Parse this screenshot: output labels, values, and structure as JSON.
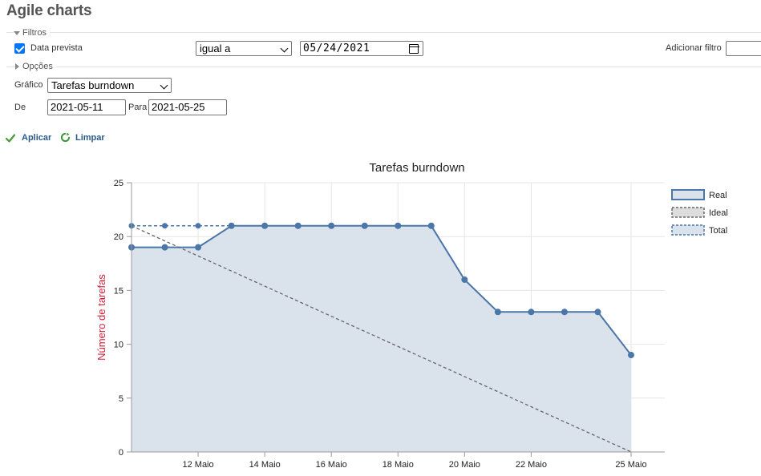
{
  "page": {
    "title": "Agile charts"
  },
  "filters": {
    "legend": "Filtros",
    "data_prevista": {
      "label": "Data prevista",
      "checked": true
    },
    "operator": "igual a",
    "date_value": "05/24/2021",
    "add_filter_label": "Adicionar filtro"
  },
  "options": {
    "legend": "Opções"
  },
  "grafico": {
    "label": "Gráfico",
    "selected": "Tarefas burndown"
  },
  "range": {
    "de_label": "De",
    "de_value": "2021-05-11",
    "para_label": "Para",
    "para_value": "2021-05-25"
  },
  "actions": {
    "apply": "Aplicar",
    "clear": "Limpar"
  },
  "chart_data": {
    "type": "line",
    "title": "Tarefas burndown",
    "ylabel": "Número de tarefas",
    "xlabel": "",
    "ylim": [
      0,
      25
    ],
    "yticks": [
      "0",
      "5",
      "10",
      "15",
      "20",
      "25"
    ],
    "x": [
      "2021-05-10",
      "2021-05-11",
      "2021-05-12",
      "2021-05-13",
      "2021-05-14",
      "2021-05-15",
      "2021-05-16",
      "2021-05-17",
      "2021-05-18",
      "2021-05-19",
      "2021-05-20",
      "2021-05-21",
      "2021-05-22",
      "2021-05-23",
      "2021-05-24",
      "2021-05-25"
    ],
    "xtick_labels": [
      {
        "date": "2021-05-12",
        "label": "12 Maio"
      },
      {
        "date": "2021-05-14",
        "label": "14 Maio"
      },
      {
        "date": "2021-05-16",
        "label": "16 Maio"
      },
      {
        "date": "2021-05-18",
        "label": "18 Maio"
      },
      {
        "date": "2021-05-20",
        "label": "20 Maio"
      },
      {
        "date": "2021-05-22",
        "label": "22 Maio"
      },
      {
        "date": "2021-05-25",
        "label": "25 Maio"
      }
    ],
    "grid": true,
    "legend_position": "right",
    "series": [
      {
        "name": "Real",
        "style": "area",
        "color": "#4a76a8",
        "fill": "#dae2ec",
        "points": [
          {
            "x": "2021-05-10",
            "y": 19
          },
          {
            "x": "2021-05-11",
            "y": 19
          },
          {
            "x": "2021-05-12",
            "y": 19
          },
          {
            "x": "2021-05-13",
            "y": 21
          },
          {
            "x": "2021-05-14",
            "y": 21
          },
          {
            "x": "2021-05-15",
            "y": 21
          },
          {
            "x": "2021-05-16",
            "y": 21
          },
          {
            "x": "2021-05-17",
            "y": 21
          },
          {
            "x": "2021-05-18",
            "y": 21
          },
          {
            "x": "2021-05-19",
            "y": 21
          },
          {
            "x": "2021-05-20",
            "y": 16
          },
          {
            "x": "2021-05-21",
            "y": 13
          },
          {
            "x": "2021-05-22",
            "y": 13
          },
          {
            "x": "2021-05-23",
            "y": 13
          },
          {
            "x": "2021-05-24",
            "y": 13
          },
          {
            "x": "2021-05-25",
            "y": 9
          }
        ]
      },
      {
        "name": "Ideal",
        "style": "dashed",
        "color": "#666666",
        "fill": "#dddddd",
        "points": [
          {
            "x": "2021-05-10",
            "y": 21
          },
          {
            "x": "2021-05-25",
            "y": 0
          }
        ]
      },
      {
        "name": "Total",
        "style": "dashed",
        "color": "#4a76a8",
        "fill": "#dae2ec",
        "points": [
          {
            "x": "2021-05-10",
            "y": 21
          },
          {
            "x": "2021-05-11",
            "y": 21
          },
          {
            "x": "2021-05-12",
            "y": 21
          },
          {
            "x": "2021-05-13",
            "y": 21
          }
        ]
      }
    ]
  }
}
